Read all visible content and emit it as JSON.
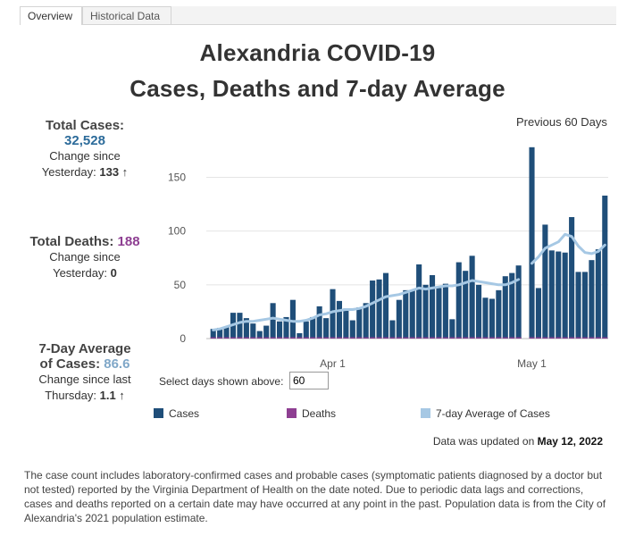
{
  "tabs": [
    {
      "label": "Overview",
      "active": true
    },
    {
      "label": "Historical Data",
      "active": false
    }
  ],
  "title_line1": "Alexandria COVID-19",
  "title_line2": "Cases, Deaths and 7-day Average",
  "total_cases": {
    "label": "Total Cases:",
    "value": "32,528",
    "change_label_1": "Change since",
    "change_label_2": "Yesterday:",
    "change_value": "133 ↑"
  },
  "total_deaths": {
    "label": "Total Deaths:",
    "value": "188",
    "change_label_1": "Change since",
    "change_label_2": "Yesterday:",
    "change_value": "0"
  },
  "avg_cases": {
    "label_1": "7-Day Average",
    "label_2": "of Cases:",
    "value": "86.6",
    "change_label_1": "Change since last",
    "change_label_2": "Thursday:",
    "change_value": "1.1 ↑"
  },
  "period_label": "Previous 60 Days",
  "select_label": "Select days shown above:",
  "select_value": "60",
  "legend": {
    "cases": "Cases",
    "deaths": "Deaths",
    "avg": "7-day Average of Cases"
  },
  "updated_prefix": "Data was updated on",
  "updated_date": "May 12, 2022",
  "footnote": "The case count includes laboratory-confirmed cases and probable cases (symptomatic patients diagnosed by a doctor but not tested) reported by the Virginia Department of Health on the date noted. Due to periodic data lags and  corrections, cases and deaths reported on a certain date may have occurred at any point in the past. Population data is from the City of Alexandria's 2021 population estimate.",
  "colors": {
    "cases": "#1f4e79",
    "deaths": "#8e3f92",
    "avg": "#a6c8e4"
  },
  "chart_data": {
    "type": "bar",
    "x_start": "2022-03-14",
    "x_tick_labels": [
      {
        "date": "2022-04-01",
        "label": "Apr 1"
      },
      {
        "date": "2022-05-01",
        "label": "May 1"
      }
    ],
    "y_ticks": [
      0,
      50,
      100,
      150
    ],
    "ylim": [
      0,
      182
    ],
    "series": [
      {
        "name": "Cases",
        "type": "bar",
        "values": [
          9,
          10,
          11,
          24,
          24,
          19,
          14,
          7,
          12,
          33,
          16,
          20,
          36,
          5,
          16,
          20,
          30,
          19,
          46,
          35,
          28,
          17,
          29,
          33,
          54,
          55,
          61,
          17,
          36,
          45,
          45,
          69,
          50,
          59,
          47,
          51,
          18,
          71,
          63,
          77,
          50,
          38,
          37,
          45,
          58,
          61,
          68,
          null,
          178,
          47,
          106,
          82,
          81,
          80,
          113,
          62,
          62,
          73,
          83,
          133
        ]
      },
      {
        "name": "Deaths",
        "type": "bar",
        "values": [
          0,
          0,
          0,
          0,
          0,
          0,
          0,
          0,
          0,
          0,
          0,
          0,
          0,
          0,
          0,
          0,
          0,
          0,
          0,
          0,
          0,
          0,
          0,
          0,
          0,
          0,
          0,
          0,
          0,
          0,
          0,
          0,
          0,
          0,
          0,
          0,
          0,
          0,
          0,
          0,
          0,
          0,
          0,
          0,
          0,
          0,
          0,
          null,
          0,
          0,
          0,
          0,
          0,
          0,
          0,
          0,
          0,
          0,
          0,
          0
        ]
      },
      {
        "name": "7-day Average of Cases",
        "type": "line",
        "values": [
          8,
          9,
          11,
          13,
          15,
          16,
          16,
          17,
          18,
          19,
          18,
          17,
          16,
          16,
          17,
          19,
          22,
          23,
          25,
          26,
          27,
          27,
          28,
          30,
          33,
          36,
          39,
          40,
          41,
          43,
          45,
          47,
          46,
          47,
          48,
          49,
          49,
          50,
          52,
          54,
          53,
          52,
          51,
          50,
          50,
          52,
          55,
          null,
          70,
          76,
          84,
          87,
          90,
          97,
          95,
          86,
          80,
          79,
          81,
          87
        ]
      }
    ]
  }
}
